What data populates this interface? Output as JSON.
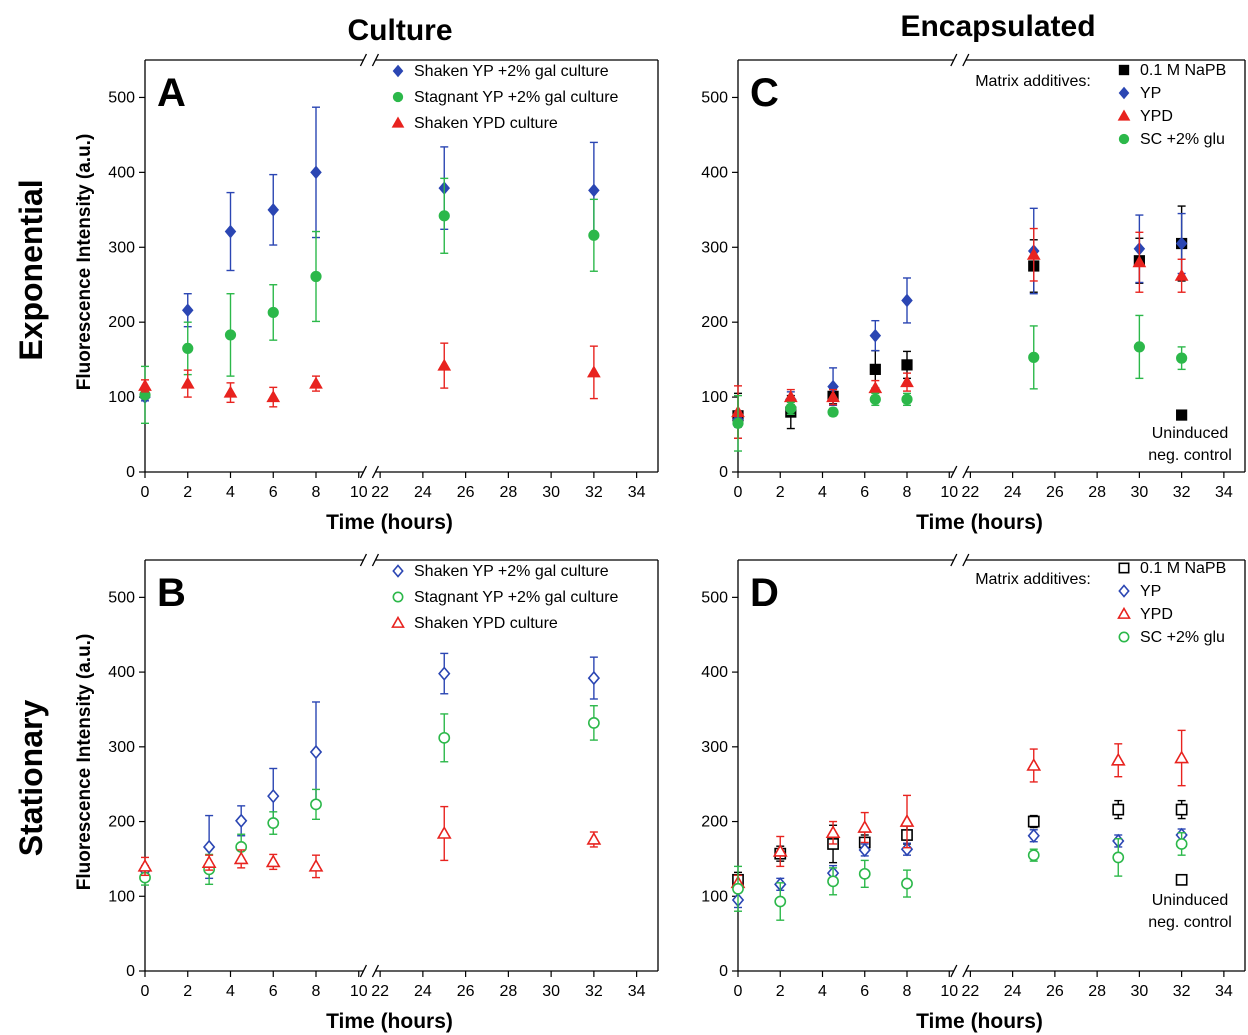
{
  "figure": {
    "column_titles": [
      "Culture",
      "Encapsulated"
    ],
    "row_titles": [
      "Exponential",
      "Stationary"
    ],
    "ylabel": "Fluorescence Intensity (a.u.)"
  },
  "chart_data": [
    {
      "panel": "A",
      "type": "scatter",
      "xlabel": "Time (hours)",
      "ylabel": "Fluorescence Intensity (a.u.)",
      "xlim": [
        0,
        35
      ],
      "x_break": [
        10,
        22
      ],
      "xticks": [
        0,
        2,
        4,
        6,
        8,
        10,
        22,
        24,
        26,
        28,
        30,
        32,
        34
      ],
      "ylim": [
        0,
        550
      ],
      "yticks": [
        0,
        100,
        200,
        300,
        400,
        500
      ],
      "legend_position": "top-right",
      "series": [
        {
          "name": "Shaken YP +2% gal culture",
          "marker": "diamond",
          "filled": true,
          "color": "#2b46b3",
          "x": [
            0,
            2,
            4,
            6,
            8,
            25,
            32
          ],
          "y": [
            100,
            216,
            321,
            350,
            400,
            379,
            376
          ],
          "err": [
            5,
            22,
            52,
            47,
            87,
            55,
            64
          ]
        },
        {
          "name": "Stagnant YP +2% gal culture",
          "marker": "circle",
          "filled": true,
          "color": "#2cb84a",
          "x": [
            0,
            2,
            4,
            6,
            8,
            25,
            32
          ],
          "y": [
            103,
            165,
            183,
            213,
            261,
            342,
            316
          ],
          "err": [
            38,
            35,
            55,
            37,
            60,
            50,
            48
          ]
        },
        {
          "name": "Shaken YPD culture",
          "marker": "triangle",
          "filled": true,
          "color": "#e8231f",
          "x": [
            0,
            2,
            4,
            6,
            8,
            25,
            32
          ],
          "y": [
            115,
            118,
            106,
            100,
            118,
            142,
            133
          ],
          "err": [
            8,
            18,
            13,
            13,
            10,
            30,
            35
          ]
        }
      ]
    },
    {
      "panel": "B",
      "type": "scatter",
      "xlabel": "Time (hours)",
      "ylabel": "Fluorescence Intensity (a.u.)",
      "xlim": [
        0,
        35
      ],
      "x_break": [
        10,
        22
      ],
      "xticks": [
        0,
        2,
        4,
        6,
        8,
        10,
        22,
        24,
        26,
        28,
        30,
        32,
        34
      ],
      "ylim": [
        0,
        550
      ],
      "yticks": [
        0,
        100,
        200,
        300,
        400,
        500
      ],
      "legend_position": "top-right",
      "series": [
        {
          "name": "Shaken YP +2% gal culture",
          "marker": "diamond",
          "filled": false,
          "color": "#2b46b3",
          "x": [
            0,
            3,
            4.5,
            6,
            8,
            25,
            32
          ],
          "y": [
            135,
            166,
            201,
            234,
            293,
            398,
            392
          ],
          "err": [
            6,
            42,
            20,
            37,
            67,
            27,
            28
          ]
        },
        {
          "name": "Stagnant YP +2% gal culture",
          "marker": "circle",
          "filled": false,
          "color": "#2cb84a",
          "x": [
            0,
            3,
            4.5,
            6,
            8,
            25,
            32
          ],
          "y": [
            125,
            136,
            166,
            198,
            223,
            312,
            332
          ],
          "err": [
            10,
            20,
            17,
            15,
            20,
            32,
            23
          ]
        },
        {
          "name": "Shaken YPD culture",
          "marker": "triangle",
          "filled": false,
          "color": "#e8231f",
          "x": [
            0,
            3,
            4.5,
            6,
            8,
            25,
            32
          ],
          "y": [
            140,
            145,
            150,
            146,
            140,
            184,
            176
          ],
          "err": [
            12,
            10,
            12,
            10,
            15,
            36,
            10
          ]
        }
      ]
    },
    {
      "panel": "C",
      "type": "scatter",
      "xlabel": "Time (hours)",
      "ylabel": "",
      "xlim": [
        0,
        35
      ],
      "x_break": [
        10,
        22
      ],
      "xticks": [
        0,
        2,
        4,
        6,
        8,
        10,
        22,
        24,
        26,
        28,
        30,
        32,
        34
      ],
      "ylim": [
        0,
        550
      ],
      "yticks": [
        0,
        100,
        200,
        300,
        400,
        500
      ],
      "legend_position": "top-right",
      "legend_title": "Matrix additives:",
      "annotation": [
        "Uninduced",
        "neg. control"
      ],
      "series": [
        {
          "name": "0.1 M NaPB",
          "marker": "square",
          "filled": true,
          "color": "#000000",
          "x": [
            0,
            2.5,
            4.5,
            6.5,
            8,
            25,
            30,
            32
          ],
          "y": [
            75,
            80,
            101,
            137,
            143,
            275,
            282,
            305
          ],
          "err": [
            30,
            22,
            10,
            25,
            18,
            35,
            30,
            50
          ]
        },
        {
          "name": "YP",
          "marker": "diamond",
          "filled": true,
          "color": "#2b46b3",
          "x": [
            0,
            2.5,
            4.5,
            6.5,
            8,
            25,
            30,
            32
          ],
          "y": [
            70,
            97,
            114,
            182,
            229,
            295,
            298,
            305
          ],
          "err": [
            10,
            10,
            25,
            20,
            30,
            57,
            45,
            40
          ]
        },
        {
          "name": "YPD",
          "marker": "triangle",
          "filled": true,
          "color": "#e8231f",
          "x": [
            0,
            2.5,
            4.5,
            6.5,
            8,
            25,
            30,
            32
          ],
          "y": [
            80,
            100,
            100,
            112,
            120,
            290,
            280,
            262
          ],
          "err": [
            35,
            10,
            10,
            10,
            12,
            35,
            40,
            22
          ]
        },
        {
          "name": "SC +2% glu",
          "marker": "circle",
          "filled": true,
          "color": "#2cb84a",
          "x": [
            0,
            2.5,
            4.5,
            6.5,
            8,
            25,
            30,
            32
          ],
          "y": [
            65,
            85,
            80,
            97,
            97,
            153,
            167,
            152
          ],
          "err": [
            37,
            8,
            5,
            8,
            8,
            42,
            42,
            15
          ]
        },
        {
          "name": "Uninduced neg. control",
          "marker": "square",
          "filled": true,
          "color": "#000000",
          "x": [
            32
          ],
          "y": [
            76
          ],
          "err": [
            0
          ]
        }
      ]
    },
    {
      "panel": "D",
      "type": "scatter",
      "xlabel": "Time (hours)",
      "ylabel": "",
      "xlim": [
        0,
        35
      ],
      "x_break": [
        10,
        22
      ],
      "xticks": [
        0,
        2,
        4,
        6,
        8,
        10,
        22,
        24,
        26,
        28,
        30,
        32,
        34
      ],
      "ylim": [
        0,
        550
      ],
      "yticks": [
        0,
        100,
        200,
        300,
        400,
        500
      ],
      "legend_position": "top-right",
      "legend_title": "Matrix additives:",
      "annotation": [
        "Uninduced",
        "neg. control"
      ],
      "series": [
        {
          "name": "0.1 M NaPB",
          "marker": "square",
          "filled": false,
          "color": "#000000",
          "x": [
            0,
            2,
            4.5,
            6,
            8,
            25,
            29,
            32
          ],
          "y": [
            122,
            157,
            170,
            172,
            182,
            200,
            216,
            216
          ],
          "err": [
            10,
            10,
            25,
            10,
            12,
            8,
            12,
            12
          ]
        },
        {
          "name": "YP",
          "marker": "diamond",
          "filled": false,
          "color": "#2b46b3",
          "x": [
            0,
            2,
            4.5,
            6,
            8,
            25,
            29,
            32
          ],
          "y": [
            95,
            116,
            131,
            162,
            163,
            181,
            174,
            182
          ],
          "err": [
            10,
            8,
            10,
            8,
            8,
            8,
            8,
            8
          ]
        },
        {
          "name": "YPD",
          "marker": "triangle",
          "filled": false,
          "color": "#e8231f",
          "x": [
            0,
            2,
            4.5,
            6,
            8,
            25,
            29,
            32
          ],
          "y": [
            118,
            160,
            185,
            192,
            200,
            275,
            282,
            285
          ],
          "err": [
            10,
            20,
            15,
            20,
            35,
            22,
            22,
            37
          ]
        },
        {
          "name": "SC +2% glu",
          "marker": "circle",
          "filled": false,
          "color": "#2cb84a",
          "x": [
            0,
            2,
            4.5,
            6,
            8,
            25,
            29,
            32
          ],
          "y": [
            110,
            93,
            120,
            130,
            117,
            155,
            152,
            170
          ],
          "err": [
            30,
            25,
            18,
            18,
            18,
            8,
            25,
            15
          ]
        },
        {
          "name": "Uninduced neg. control",
          "marker": "square",
          "filled": false,
          "color": "#000000",
          "x": [
            32
          ],
          "y": [
            122
          ],
          "err": [
            0
          ]
        }
      ]
    }
  ]
}
